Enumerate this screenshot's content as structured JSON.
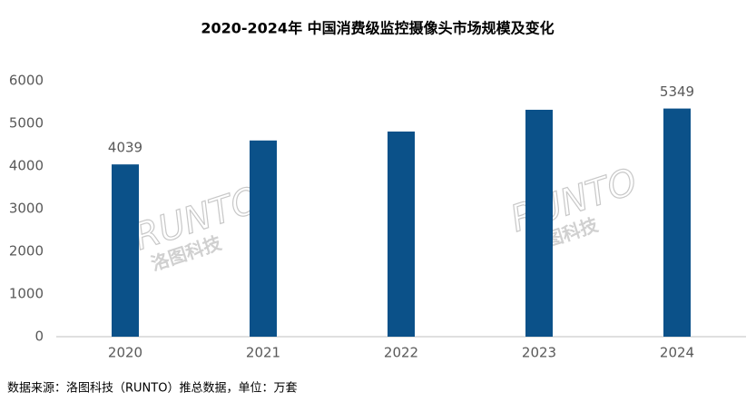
{
  "chart_data": {
    "type": "bar",
    "title": "2020-2024年 中国消费级监控摄像头市场规模及变化",
    "categories": [
      "2020",
      "2021",
      "2022",
      "2023",
      "2024"
    ],
    "values": [
      4039,
      4600,
      4810,
      5320,
      5349
    ],
    "value_labels": [
      "4039",
      null,
      null,
      null,
      "5349"
    ],
    "color": "#0b5189",
    "ylim": [
      0,
      6000
    ],
    "yticks": [
      0,
      1000,
      2000,
      3000,
      4000,
      5000,
      6000
    ],
    "grid": false,
    "watermark": "RUNTO",
    "watermark_sub": "洛图科技",
    "source": "数据来源：洛图科技（RUNTO）推总数据，单位：万套"
  }
}
